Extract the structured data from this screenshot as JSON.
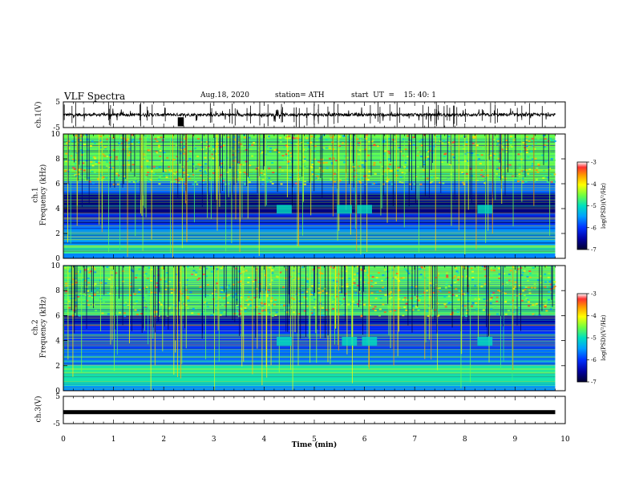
{
  "header": {
    "title": "VLF Spectra",
    "date": "Aug.18, 2020",
    "station": "station= ATH",
    "start": "start  UT  =    15: 40: 1"
  },
  "panels": {
    "ch1_wave": {
      "ylabel": "ch.1(V)",
      "ymax_label": "5",
      "ymin_label": "-5"
    },
    "ch1_spec": {
      "ylabel_line1": "ch.1",
      "ylabel_line2": "Frequency (kHz)"
    },
    "ch2_spec": {
      "ylabel_line1": "ch.2",
      "ylabel_line2": "Frequency (kHz)"
    },
    "ch3_wave": {
      "ylabel": "ch.3(V)",
      "ymax_label": "5",
      "ymin_label": "-5"
    },
    "xlabel": "Time  (min)"
  },
  "colorbar": {
    "label": "log(PSD)(V²/Hz)",
    "ticks": [
      "-3",
      "-4",
      "-5",
      "-6",
      "-7"
    ],
    "colors": [
      "#ffffff",
      "#ff3030",
      "#ff9a00",
      "#ffff00",
      "#70ff40",
      "#00e0c0",
      "#00a0ff",
      "#0030ff",
      "#000090",
      "#000030"
    ]
  },
  "chart_data": [
    {
      "type": "line",
      "name": "ch.1 waveform",
      "ylabel": "ch.1(V)",
      "xlim": [
        0,
        10
      ],
      "ylim": [
        -5,
        5
      ],
      "x_ticks": [
        "0",
        "1",
        "2",
        "3",
        "4",
        "5",
        "6",
        "7",
        "8",
        "9",
        "10"
      ],
      "y_ticks": [
        "5",
        "-5"
      ],
      "baseline_v": 0
    },
    {
      "type": "heatmap",
      "name": "ch.1 spectrogram",
      "ylabel": "Frequency (kHz)",
      "xlim": [
        0,
        10
      ],
      "ylim": [
        0,
        10
      ],
      "y_ticks": [
        "0",
        "2",
        "4",
        "6",
        "8",
        "10"
      ],
      "colorbar_range": [
        -7,
        -3
      ],
      "data_end_min": 9.8,
      "band_levels": [
        {
          "f_min": 0,
          "f_max": 0.4,
          "level": -5.6
        },
        {
          "f_min": 0.4,
          "f_max": 1.0,
          "level": -4.8
        },
        {
          "f_min": 1.0,
          "f_max": 2.0,
          "level": -5.5
        },
        {
          "f_min": 2.0,
          "f_max": 2.6,
          "level": -5.6
        },
        {
          "f_min": 2.6,
          "f_max": 3.6,
          "level": -6.1
        },
        {
          "f_min": 3.6,
          "f_max": 5.2,
          "level": -6.7
        },
        {
          "f_min": 5.2,
          "f_max": 6.2,
          "level": -5.7
        },
        {
          "f_min": 6.2,
          "f_max": 10.0,
          "level": -4.6
        }
      ],
      "transient_band_times_min": [
        4.4,
        5.6,
        6.0,
        8.4
      ]
    },
    {
      "type": "heatmap",
      "name": "ch.2 spectrogram",
      "ylabel": "Frequency (kHz)",
      "xlim": [
        0,
        10
      ],
      "ylim": [
        0,
        10
      ],
      "y_ticks": [
        "0",
        "2",
        "4",
        "6",
        "8",
        "10"
      ],
      "colorbar_range": [
        -7,
        -3
      ],
      "data_end_min": 9.8,
      "band_levels": [
        {
          "f_min": 0,
          "f_max": 0.4,
          "level": -5.5
        },
        {
          "f_min": 0.4,
          "f_max": 2.0,
          "level": -4.9
        },
        {
          "f_min": 2.0,
          "f_max": 3.4,
          "level": -5.7
        },
        {
          "f_min": 3.4,
          "f_max": 5.2,
          "level": -6.0
        },
        {
          "f_min": 5.2,
          "f_max": 6.0,
          "level": -6.5
        },
        {
          "f_min": 6.0,
          "f_max": 10.0,
          "level": -4.7
        }
      ],
      "transient_band_times_min": [
        4.4,
        5.7,
        6.1,
        8.4
      ]
    },
    {
      "type": "line",
      "name": "ch.3 waveform",
      "ylabel": "ch.3(V)",
      "xlim": [
        0,
        10
      ],
      "ylim": [
        -5,
        5
      ],
      "y_ticks": [
        "5",
        "-5"
      ],
      "constant_v": -0.8
    }
  ]
}
